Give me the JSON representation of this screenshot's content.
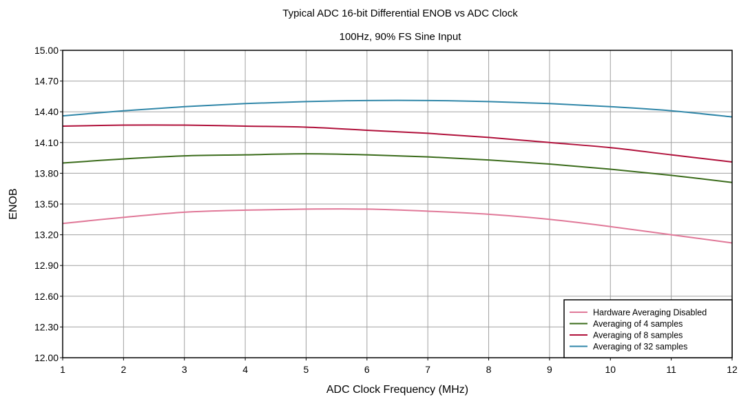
{
  "chart_data": {
    "type": "line",
    "title": "Typical ADC 16-bit Differential ENOB vs ADC Clock",
    "subtitle": "100Hz, 90% FS Sine Input",
    "xlabel": "ADC Clock Frequency (MHz)",
    "ylabel": "ENOB",
    "xlim": [
      1,
      12
    ],
    "ylim": [
      12.0,
      15.0
    ],
    "x_ticks": [
      "1",
      "2",
      "3",
      "4",
      "5",
      "6",
      "7",
      "8",
      "9",
      "10",
      "11",
      "12"
    ],
    "y_ticks": [
      "12.00",
      "12.30",
      "12.60",
      "12.90",
      "13.20",
      "13.50",
      "13.80",
      "14.10",
      "14.40",
      "14.70",
      "15.00"
    ],
    "grid": true,
    "legend_position": "bottom-right",
    "x": [
      1,
      2,
      3,
      4,
      5,
      6,
      7,
      8,
      9,
      10,
      11,
      12
    ],
    "series": [
      {
        "name": "Hardware Averaging Disabled",
        "color": "#e07898",
        "values": [
          13.31,
          13.37,
          13.42,
          13.44,
          13.45,
          13.45,
          13.43,
          13.4,
          13.35,
          13.28,
          13.2,
          13.12
        ]
      },
      {
        "name": "Averaging of 4 samples",
        "color": "#3a6b1a",
        "values": [
          13.9,
          13.94,
          13.97,
          13.98,
          13.99,
          13.98,
          13.96,
          13.93,
          13.89,
          13.84,
          13.78,
          13.71
        ]
      },
      {
        "name": "Averaging of 8 samples",
        "color": "#b0103a",
        "values": [
          14.26,
          14.27,
          14.27,
          14.26,
          14.25,
          14.22,
          14.19,
          14.15,
          14.1,
          14.05,
          13.98,
          13.91
        ]
      },
      {
        "name": "Averaging of 32 samples",
        "color": "#2f86a8",
        "values": [
          14.36,
          14.41,
          14.45,
          14.48,
          14.5,
          14.51,
          14.51,
          14.5,
          14.48,
          14.45,
          14.41,
          14.35
        ]
      }
    ]
  }
}
